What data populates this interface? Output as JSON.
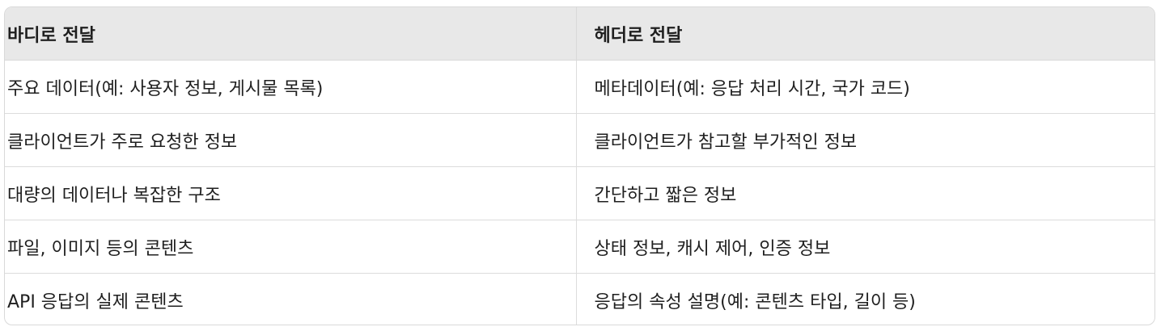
{
  "table": {
    "headers": [
      "바디로 전달",
      "헤더로 전달"
    ],
    "rows": [
      [
        "주요 데이터(예: 사용자 정보, 게시물 목록)",
        "메타데이터(예: 응답 처리 시간, 국가 코드)"
      ],
      [
        "클라이언트가 주로 요청한 정보",
        "클라이언트가 참고할 부가적인 정보"
      ],
      [
        "대량의 데이터나 복잡한 구조",
        "간단하고 짧은 정보"
      ],
      [
        "파일, 이미지 등의 콘텐츠",
        "상태 정보, 캐시 제어, 인증 정보"
      ],
      [
        "API 응답의 실제 콘텐츠",
        "응답의 속성 설명(예: 콘텐츠 타입, 길이 등)"
      ]
    ]
  }
}
